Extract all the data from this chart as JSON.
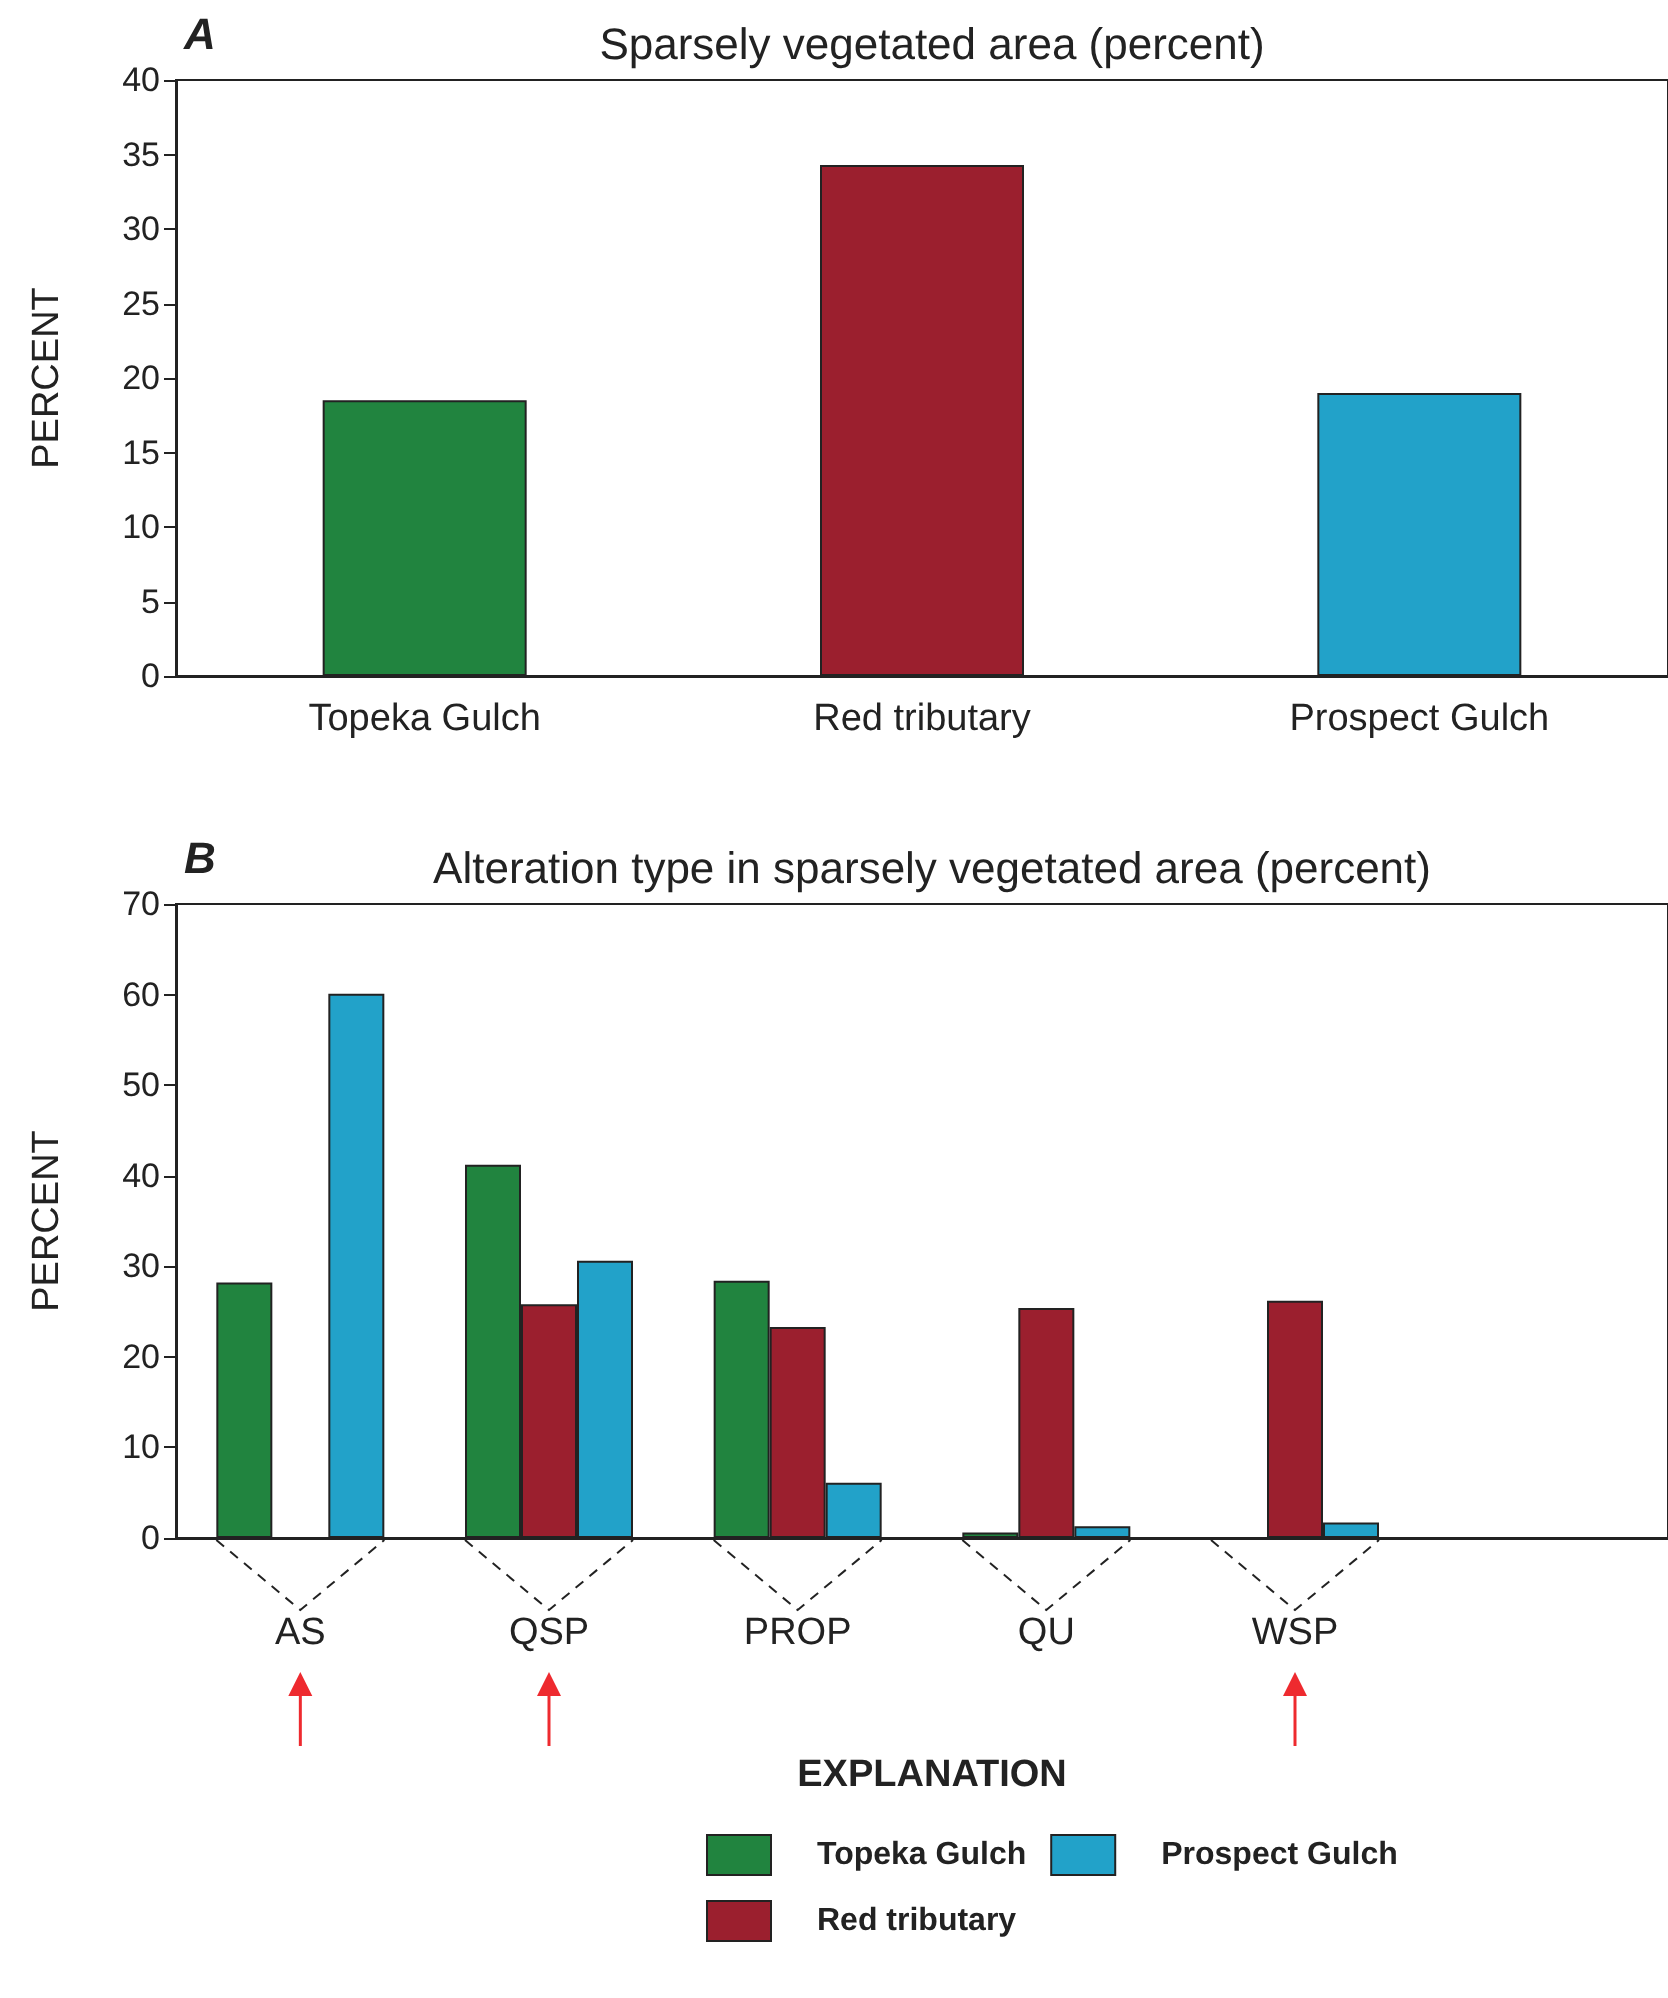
{
  "chart_data": [
    {
      "type": "bar",
      "title": "Sparsely vegetated area (percent)",
      "annotations": [
        "A"
      ],
      "ylabel": "PERCENT",
      "categories": [
        "Topeka Gulch",
        "Red tributary",
        "Prospect Gulch"
      ],
      "values": [
        18.5,
        34.3,
        19.0
      ],
      "colors": [
        "#21843f",
        "#9b1f2e",
        "#22a2c9"
      ],
      "ylim": [
        0,
        40
      ],
      "yticks": [
        0,
        5,
        10,
        15,
        20,
        25,
        30,
        35,
        40
      ],
      "grid": false,
      "legend": false
    },
    {
      "type": "bar",
      "title": "Alteration type in sparsely vegetated area (percent)",
      "annotations": [
        "B"
      ],
      "ylabel": "PERCENT",
      "legend_title": "EXPLANATION",
      "categories": [
        "AS",
        "QSP",
        "PROP",
        "QU",
        "WSP",
        null
      ],
      "series": [
        {
          "name": "Topeka Gulch",
          "color": "#21843f",
          "values": [
            28.2,
            41.2,
            28.4,
            0.6,
            null,
            null
          ]
        },
        {
          "name": "Red tributary",
          "color": "#9b1f2e",
          "values": [
            null,
            25.8,
            23.3,
            25.4,
            26.2,
            null
          ]
        },
        {
          "name": "Prospect Gulch",
          "color": "#22a2c9",
          "values": [
            60.1,
            30.6,
            6.1,
            1.3,
            1.7,
            null
          ]
        }
      ],
      "ylim": [
        0,
        70
      ],
      "yticks": [
        0,
        10,
        20,
        30,
        40,
        50,
        60,
        70
      ],
      "grid": false,
      "legend": "bottom"
    }
  ]
}
